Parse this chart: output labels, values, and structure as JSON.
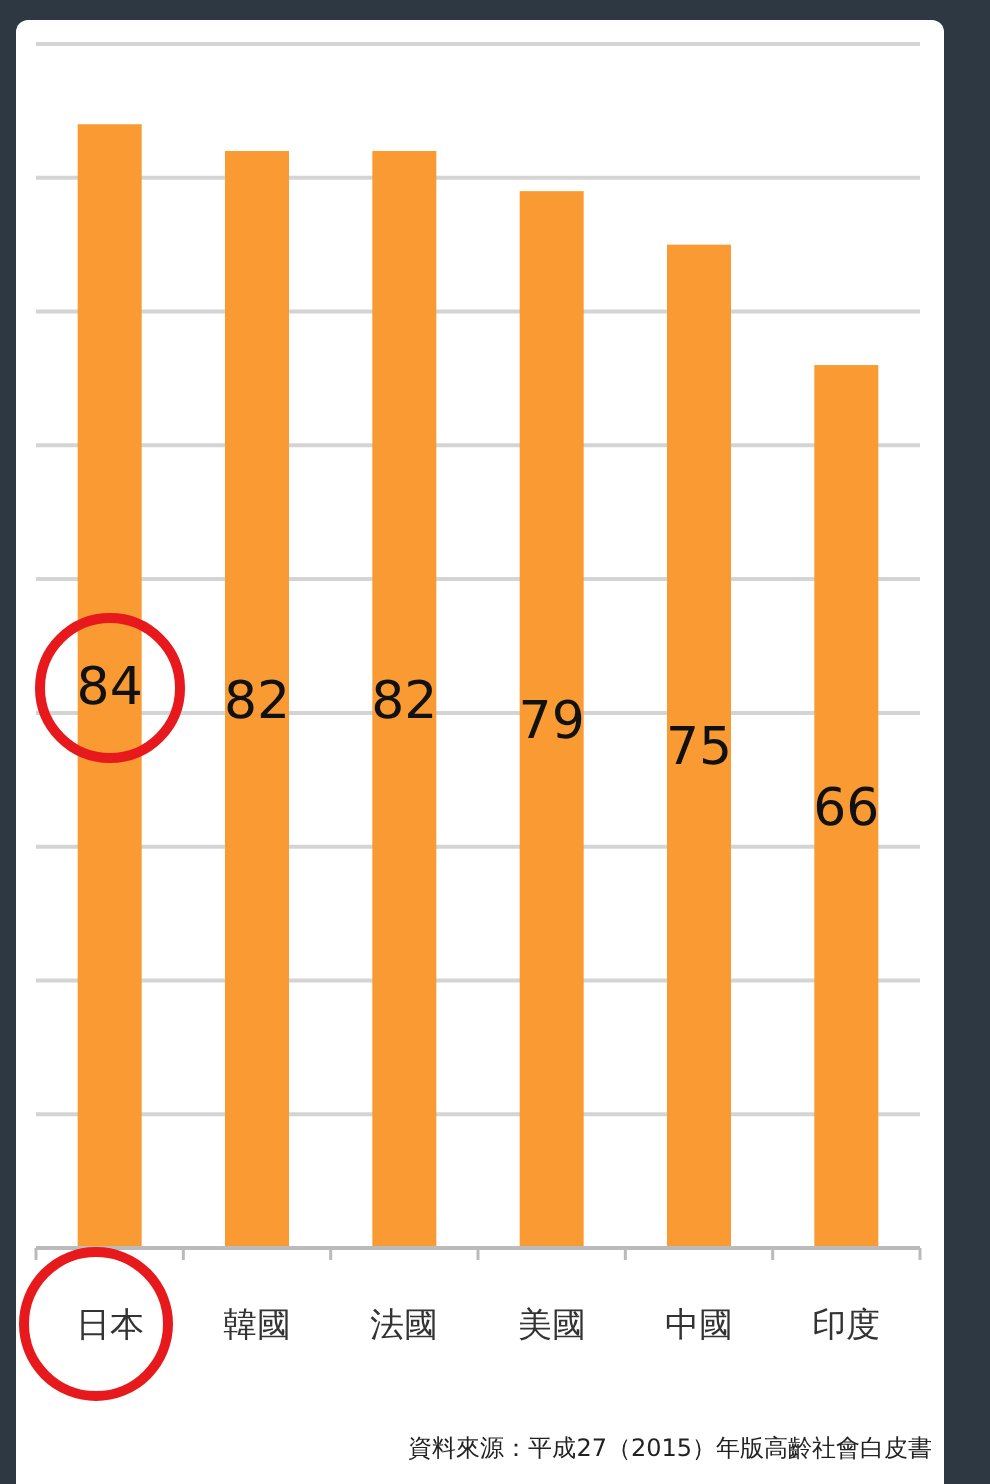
{
  "chart_data": {
    "type": "bar",
    "categories": [
      "日本",
      "韓國",
      "法國",
      "美國",
      "中國",
      "印度"
    ],
    "values": [
      84,
      82,
      82,
      79,
      75,
      66
    ],
    "color": "#f99a33",
    "data_labels": true,
    "ylim": [
      0,
      90
    ],
    "yticks": [
      {
        "value": 0,
        "label": null
      },
      {
        "value": 10,
        "label": null
      },
      {
        "value": 20,
        "label": null
      },
      {
        "value": 30,
        "label": null
      },
      {
        "value": 40,
        "label": null
      },
      {
        "value": 50,
        "label": null
      },
      {
        "value": 60,
        "label": null
      },
      {
        "value": 70,
        "label": null
      },
      {
        "value": 80,
        "label": null
      },
      {
        "value": 90,
        "label": null
      }
    ],
    "grid": "y",
    "tick_labels": "x",
    "annotations": [
      "資料來源：平成27（2015）年版高齡社會白皮書"
    ]
  }
}
